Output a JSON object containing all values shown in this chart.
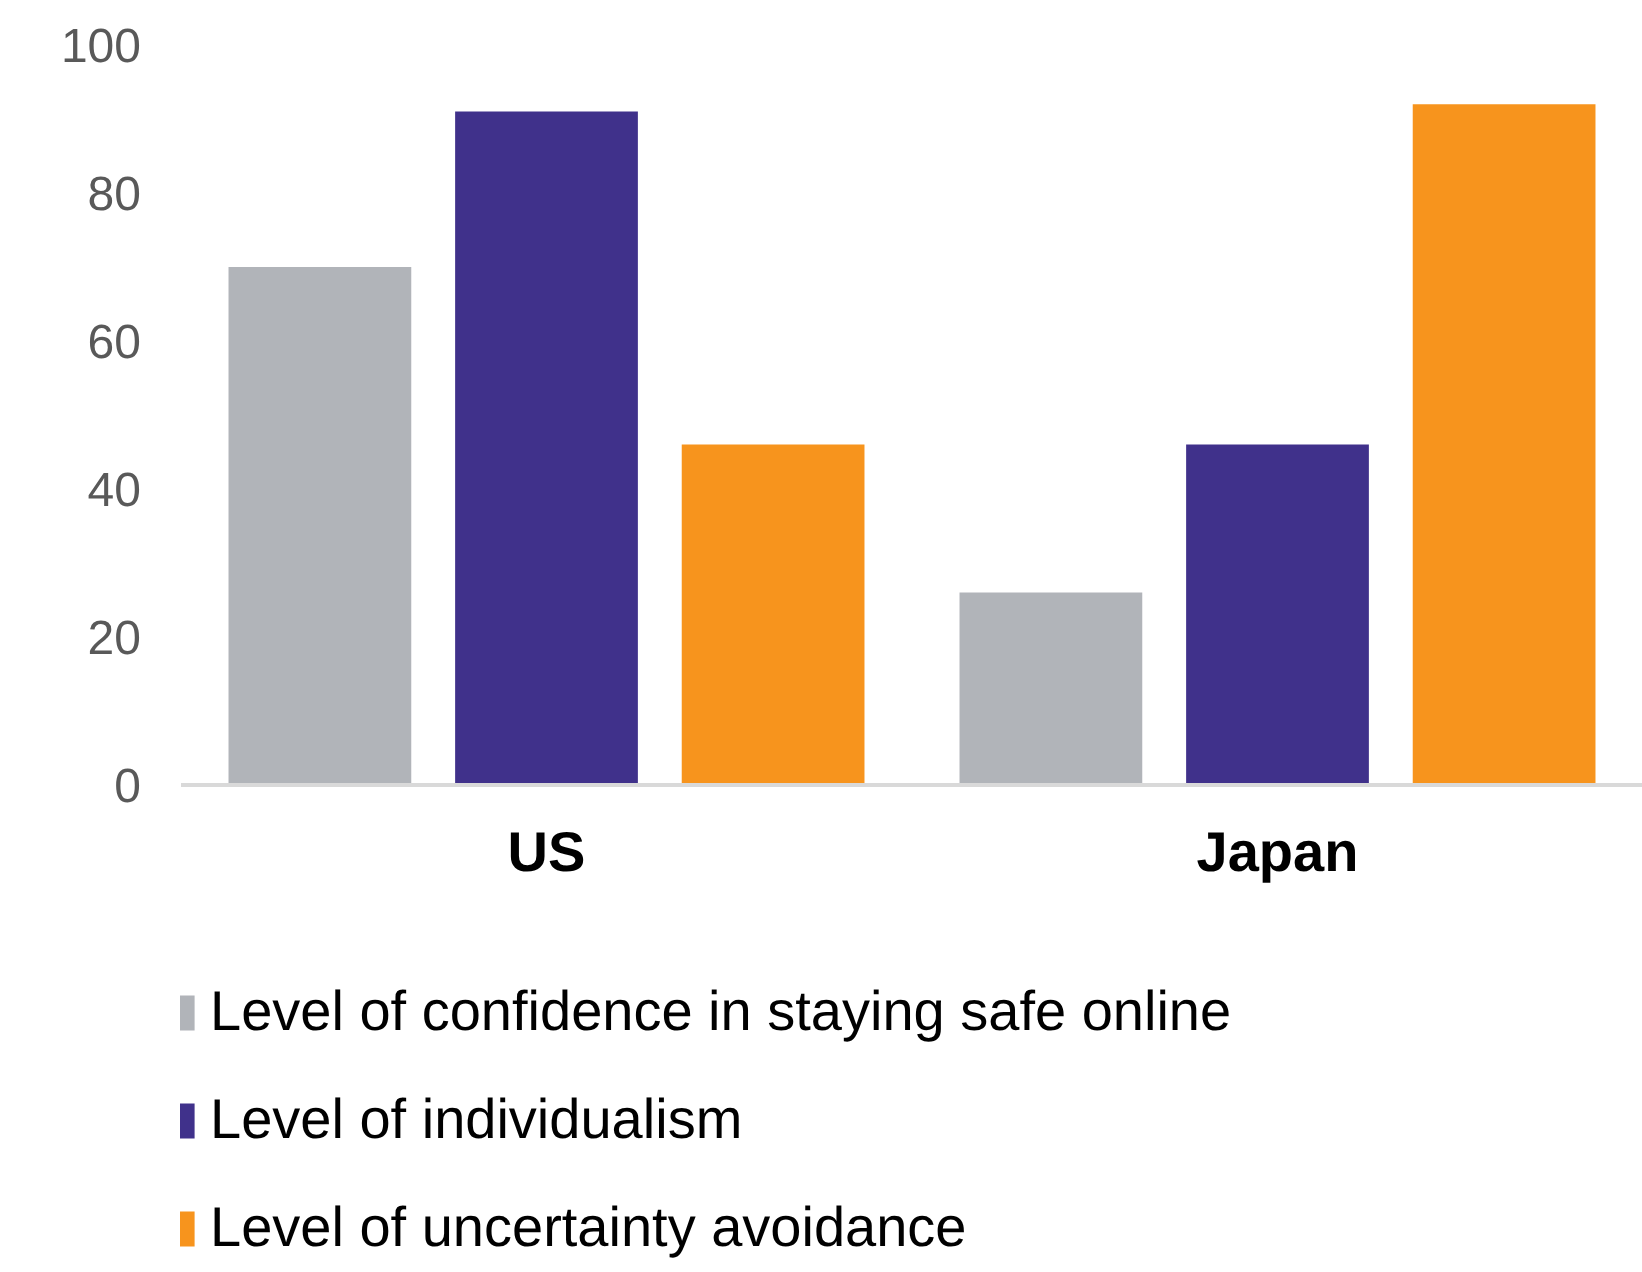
{
  "chart_data": {
    "type": "bar",
    "categories": [
      "US",
      "Japan"
    ],
    "series": [
      {
        "name": "Level of confidence in staying safe online",
        "color": "#b1b4b9",
        "values": [
          70,
          26
        ]
      },
      {
        "name": "Level of individualism",
        "color": "#40318b",
        "values": [
          91,
          46
        ]
      },
      {
        "name": "Level of uncertainty avoidance",
        "color": "#f7941d",
        "values": [
          46,
          92
        ]
      }
    ],
    "ylim": [
      0,
      100
    ],
    "yticks": [
      0,
      20,
      40,
      60,
      80,
      100
    ],
    "grid": false,
    "legend": "bottom"
  }
}
